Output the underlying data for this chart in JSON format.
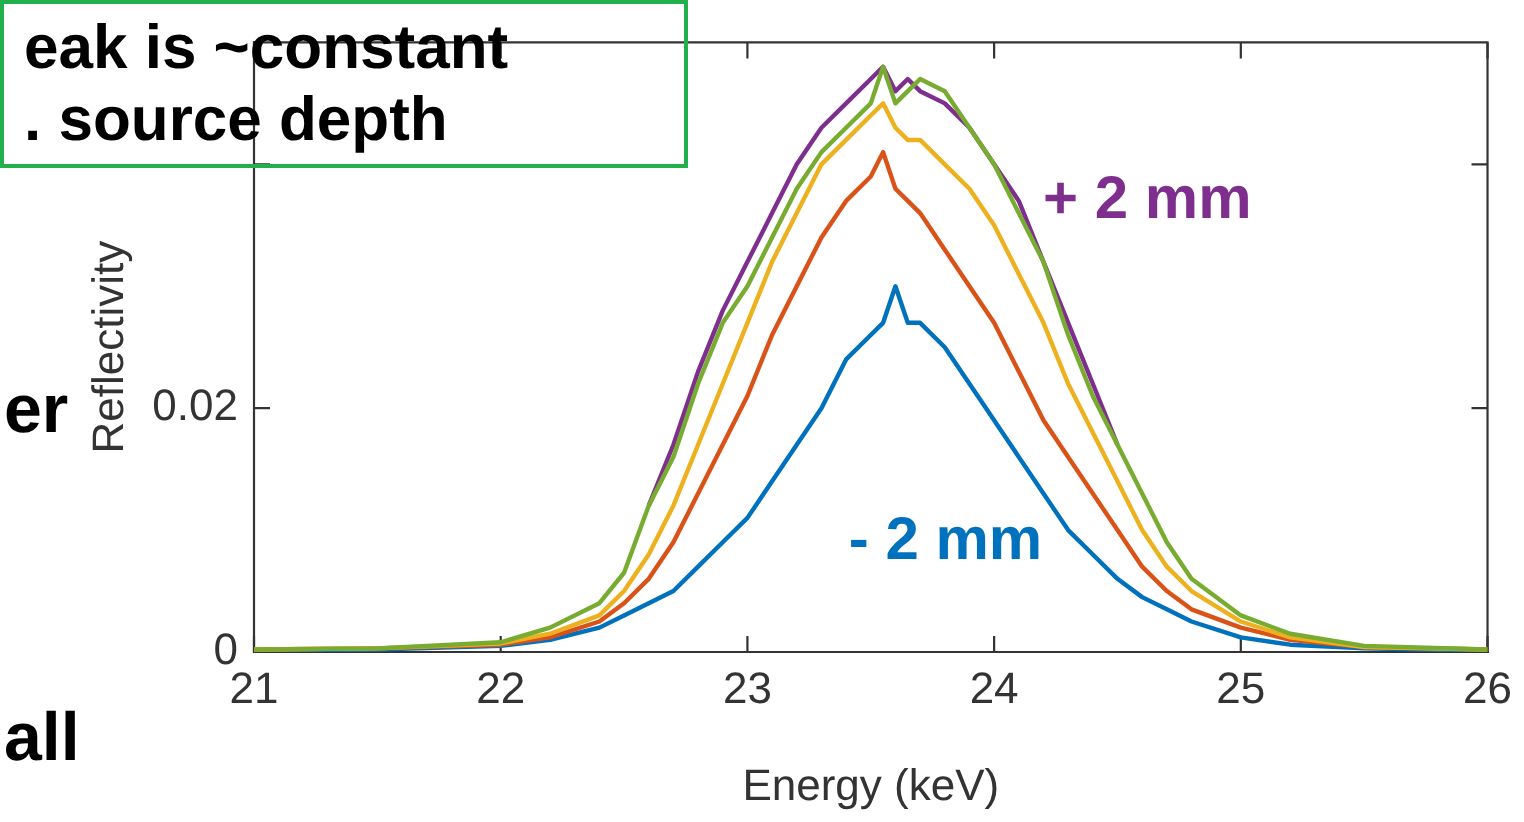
{
  "chart_data": {
    "type": "line",
    "xlabel": "Energy (keV)",
    "ylabel": "Reflectivity",
    "x": [
      21,
      21.5,
      22,
      22.2,
      22.4,
      22.5,
      22.6,
      22.7,
      22.8,
      22.9,
      23.0,
      23.1,
      23.2,
      23.3,
      23.4,
      23.5,
      23.55,
      23.6,
      23.65,
      23.7,
      23.8,
      23.9,
      24.0,
      24.1,
      24.2,
      24.3,
      24.4,
      24.5,
      24.6,
      24.7,
      24.8,
      25.0,
      25.2,
      25.5,
      26
    ],
    "series": [
      {
        "name": "- 2 mm",
        "color": "#0072bd",
        "values": [
          0.0001,
          0.0002,
          0.0005,
          0.001,
          0.002,
          0.003,
          0.004,
          0.005,
          0.007,
          0.009,
          0.011,
          0.014,
          0.017,
          0.02,
          0.024,
          0.026,
          0.027,
          0.03,
          0.027,
          0.027,
          0.025,
          0.022,
          0.019,
          0.016,
          0.013,
          0.01,
          0.008,
          0.006,
          0.0045,
          0.0035,
          0.0025,
          0.0012,
          0.0006,
          0.0003,
          0.0001
        ]
      },
      {
        "color": "#d95319",
        "values": [
          0.0002,
          0.0003,
          0.0006,
          0.0012,
          0.0025,
          0.004,
          0.006,
          0.009,
          0.013,
          0.017,
          0.021,
          0.026,
          0.03,
          0.034,
          0.037,
          0.039,
          0.041,
          0.038,
          0.037,
          0.036,
          0.033,
          0.03,
          0.027,
          0.023,
          0.019,
          0.016,
          0.013,
          0.01,
          0.007,
          0.005,
          0.0035,
          0.002,
          0.001,
          0.0004,
          0.0002
        ]
      },
      {
        "color": "#edb120",
        "values": [
          0.0002,
          0.0003,
          0.0007,
          0.0015,
          0.003,
          0.005,
          0.008,
          0.012,
          0.017,
          0.022,
          0.027,
          0.032,
          0.036,
          0.04,
          0.042,
          0.044,
          0.045,
          0.043,
          0.042,
          0.042,
          0.04,
          0.038,
          0.035,
          0.031,
          0.027,
          0.022,
          0.018,
          0.014,
          0.01,
          0.007,
          0.005,
          0.0025,
          0.0012,
          0.0004,
          0.0002
        ]
      },
      {
        "name": "+ 2 mm",
        "color": "#7e2f8e",
        "values": [
          null,
          null,
          null,
          null,
          null,
          null,
          0.012,
          0.017,
          0.023,
          0.028,
          0.032,
          0.036,
          0.04,
          0.043,
          0.045,
          0.047,
          0.048,
          0.046,
          0.047,
          0.046,
          0.045,
          0.043,
          0.04,
          0.037,
          0.032,
          0.027,
          0.022,
          0.017,
          null,
          null,
          null,
          null,
          null,
          null,
          null
        ]
      },
      {
        "color": "#77ac30",
        "values": [
          0.0002,
          0.0003,
          0.0008,
          0.002,
          0.004,
          0.0065,
          0.012,
          0.016,
          0.022,
          0.027,
          0.03,
          0.034,
          0.038,
          0.041,
          0.043,
          0.045,
          0.048,
          0.045,
          0.046,
          0.047,
          0.046,
          0.043,
          0.04,
          0.036,
          0.032,
          0.026,
          0.021,
          0.017,
          0.013,
          0.009,
          0.006,
          0.003,
          0.0015,
          0.0005,
          0.0002
        ]
      }
    ],
    "xlim": [
      21,
      26
    ],
    "xticks": [
      21,
      22,
      23,
      24,
      25,
      26
    ],
    "ylim": [
      0,
      0.05
    ],
    "yticks": [
      0,
      0.02,
      {
        "value": 0.04,
        "label": null
      }
    ],
    "grid": false,
    "legend": false,
    "marker": "none",
    "line_style": "solid",
    "annotations": [
      "eak is ~constant",
      ". source depth",
      "er",
      "all"
    ]
  }
}
